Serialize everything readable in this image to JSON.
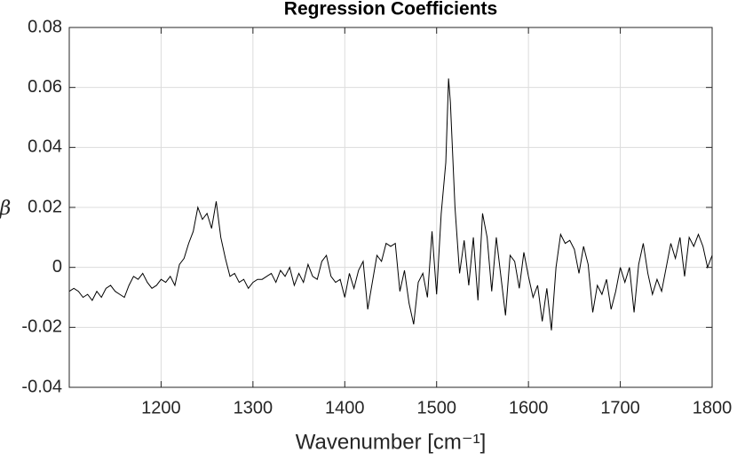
{
  "chart_data": {
    "type": "line",
    "title": "Regression Coefficients",
    "x_label": "Wavenumber [cm⁻¹]",
    "y_label": "β",
    "x": [
      1100,
      1105,
      1110,
      1115,
      1120,
      1125,
      1130,
      1135,
      1140,
      1145,
      1150,
      1155,
      1160,
      1165,
      1170,
      1175,
      1180,
      1185,
      1190,
      1195,
      1200,
      1205,
      1210,
      1215,
      1220,
      1225,
      1230,
      1235,
      1240,
      1245,
      1250,
      1255,
      1260,
      1265,
      1270,
      1275,
      1280,
      1285,
      1290,
      1295,
      1300,
      1305,
      1310,
      1315,
      1320,
      1325,
      1330,
      1335,
      1340,
      1345,
      1350,
      1355,
      1360,
      1365,
      1370,
      1375,
      1380,
      1385,
      1390,
      1395,
      1400,
      1405,
      1410,
      1415,
      1420,
      1425,
      1430,
      1435,
      1440,
      1445,
      1450,
      1455,
      1460,
      1465,
      1470,
      1475,
      1480,
      1485,
      1490,
      1495,
      1500,
      1505,
      1510,
      1513,
      1515,
      1520,
      1525,
      1530,
      1535,
      1540,
      1545,
      1550,
      1555,
      1560,
      1565,
      1570,
      1575,
      1580,
      1585,
      1590,
      1595,
      1600,
      1605,
      1610,
      1615,
      1620,
      1625,
      1630,
      1635,
      1640,
      1645,
      1650,
      1655,
      1660,
      1665,
      1670,
      1675,
      1680,
      1685,
      1690,
      1695,
      1700,
      1705,
      1710,
      1715,
      1720,
      1725,
      1730,
      1735,
      1740,
      1745,
      1750,
      1755,
      1760,
      1765,
      1770,
      1775,
      1780,
      1785,
      1790,
      1795,
      1800
    ],
    "values": [
      -0.008,
      -0.007,
      -0.008,
      -0.01,
      -0.009,
      -0.011,
      -0.008,
      -0.01,
      -0.007,
      -0.006,
      -0.008,
      -0.009,
      -0.01,
      -0.006,
      -0.003,
      -0.004,
      -0.002,
      -0.005,
      -0.007,
      -0.006,
      -0.004,
      -0.005,
      -0.003,
      -0.006,
      0.001,
      0.003,
      0.008,
      0.012,
      0.02,
      0.016,
      0.018,
      0.013,
      0.022,
      0.01,
      0.003,
      -0.003,
      -0.002,
      -0.005,
      -0.004,
      -0.007,
      -0.005,
      -0.004,
      -0.004,
      -0.003,
      -0.002,
      -0.005,
      -0.001,
      -0.003,
      0.0,
      -0.006,
      -0.002,
      -0.005,
      0.001,
      -0.003,
      -0.004,
      0.002,
      0.004,
      -0.003,
      -0.005,
      -0.004,
      -0.01,
      -0.002,
      -0.007,
      -0.001,
      0.002,
      -0.014,
      -0.005,
      0.004,
      0.002,
      0.008,
      0.007,
      0.008,
      -0.008,
      -0.001,
      -0.012,
      -0.019,
      -0.005,
      -0.002,
      -0.01,
      0.012,
      -0.009,
      0.018,
      0.035,
      0.063,
      0.055,
      0.02,
      -0.002,
      0.009,
      -0.006,
      0.01,
      -0.011,
      0.018,
      0.01,
      -0.008,
      0.01,
      -0.003,
      -0.016,
      0.004,
      0.002,
      -0.007,
      0.005,
      -0.003,
      -0.01,
      -0.006,
      -0.018,
      -0.007,
      -0.021,
      0.0,
      0.011,
      0.008,
      0.009,
      0.006,
      -0.002,
      0.007,
      0.001,
      -0.015,
      -0.006,
      -0.009,
      -0.004,
      -0.014,
      -0.008,
      0.0,
      -0.005,
      0.0,
      -0.015,
      0.001,
      0.008,
      -0.002,
      -0.009,
      -0.004,
      -0.008,
      0.0,
      0.008,
      0.003,
      0.01,
      -0.003,
      0.01,
      0.007,
      0.011,
      0.007,
      0.0,
      0.004
    ],
    "color": "#000000",
    "xlim": [
      1100,
      1800
    ],
    "xticks": [
      1200,
      1300,
      1400,
      1500,
      1600,
      1700,
      1800
    ],
    "ylim": [
      -0.04,
      0.08
    ],
    "yticks": [
      -0.04,
      -0.02,
      0,
      0.02,
      0.04,
      0.06,
      0.08
    ],
    "grid": true
  }
}
